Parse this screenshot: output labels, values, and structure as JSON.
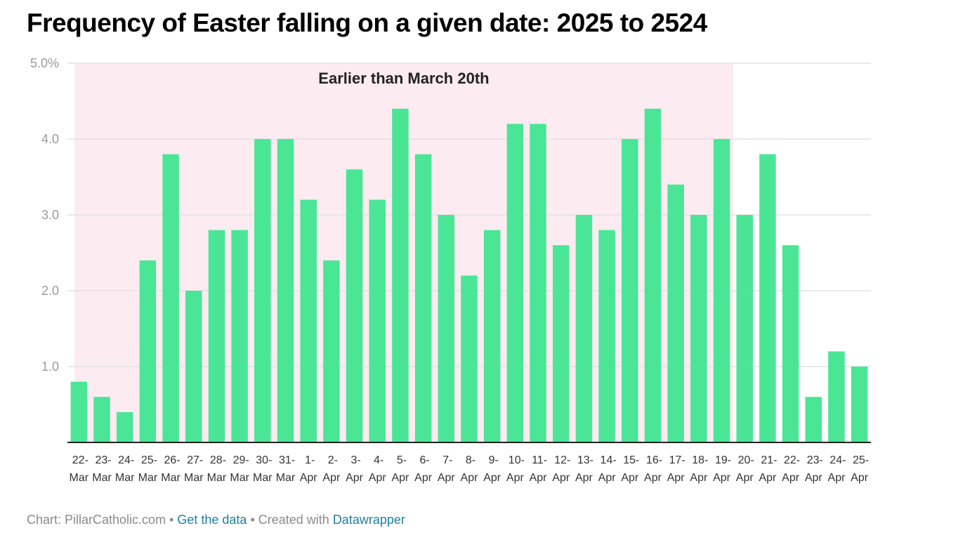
{
  "title": "Frequency of Easter falling on a given date: 2025 to 2524",
  "chart_data": {
    "type": "bar",
    "title": "Frequency of Easter falling on a given date: 2025 to 2524",
    "categories": [
      "22-Mar",
      "23-Mar",
      "24-Mar",
      "25-Mar",
      "26-Mar",
      "27-Mar",
      "28-Mar",
      "29-Mar",
      "30-Mar",
      "31-Mar",
      "1-Apr",
      "2-Apr",
      "3-Apr",
      "4-Apr",
      "5-Apr",
      "6-Apr",
      "7-Apr",
      "8-Apr",
      "9-Apr",
      "10-Apr",
      "11-Apr",
      "12-Apr",
      "13-Apr",
      "14-Apr",
      "15-Apr",
      "16-Apr",
      "17-Apr",
      "18-Apr",
      "19-Apr",
      "20-Apr",
      "21-Apr",
      "22-Apr",
      "23-Apr",
      "24-Apr",
      "25-Apr"
    ],
    "values": [
      0.8,
      0.6,
      0.4,
      2.4,
      3.8,
      2.0,
      2.8,
      2.8,
      4.0,
      4.0,
      3.2,
      2.4,
      3.6,
      3.2,
      4.4,
      3.8,
      3.0,
      2.2,
      2.8,
      4.2,
      4.2,
      2.6,
      3.0,
      2.8,
      4.0,
      4.4,
      3.4,
      3.0,
      4.0,
      3.0,
      3.8,
      2.6,
      0.6,
      1.2,
      1.0
    ],
    "ylim": [
      0,
      5
    ],
    "yticks": [
      "1.0",
      "2.0",
      "3.0",
      "4.0",
      "5.0%"
    ],
    "ytick_values": [
      1,
      2,
      3,
      4,
      5
    ],
    "grid": true,
    "bar_color": "#4ae696",
    "highlight_color": "#fdebf2",
    "annotation": {
      "text": "Earlier than March 20th",
      "from_category": "22-Mar",
      "to_category": "19-Apr"
    }
  },
  "footer": {
    "prefix": "Chart: PillarCatholic.com • ",
    "link1": "Get the data",
    "middle": " • Created with ",
    "link2": "Datawrapper"
  }
}
